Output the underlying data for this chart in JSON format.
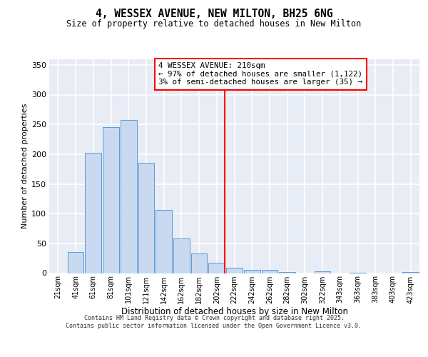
{
  "title": "4, WESSEX AVENUE, NEW MILTON, BH25 6NG",
  "subtitle": "Size of property relative to detached houses in New Milton",
  "xlabel": "Distribution of detached houses by size in New Milton",
  "ylabel": "Number of detached properties",
  "bin_labels": [
    "21sqm",
    "41sqm",
    "61sqm",
    "81sqm",
    "101sqm",
    "121sqm",
    "142sqm",
    "162sqm",
    "182sqm",
    "202sqm",
    "222sqm",
    "242sqm",
    "262sqm",
    "282sqm",
    "302sqm",
    "322sqm",
    "343sqm",
    "363sqm",
    "383sqm",
    "403sqm",
    "423sqm"
  ],
  "bar_values": [
    0,
    35,
    202,
    246,
    257,
    185,
    106,
    58,
    33,
    17,
    9,
    5,
    5,
    2,
    0,
    3,
    0,
    1,
    0,
    0,
    2
  ],
  "bar_color": "#c9d9f0",
  "bar_edgecolor": "#5b9bd5",
  "background_color": "#e8ecf5",
  "grid_color": "#ffffff",
  "property_size": 210,
  "red_line_bin": 9.45,
  "annotation_text_line1": "4 WESSEX AVENUE: 210sqm",
  "annotation_text_line2": "← 97% of detached houses are smaller (1,122)",
  "annotation_text_line3": "3% of semi-detached houses are larger (35) →",
  "ylim": [
    0,
    360
  ],
  "yticks": [
    0,
    50,
    100,
    150,
    200,
    250,
    300,
    350
  ],
  "footer_line1": "Contains HM Land Registry data © Crown copyright and database right 2025.",
  "footer_line2": "Contains public sector information licensed under the Open Government Licence v3.0."
}
